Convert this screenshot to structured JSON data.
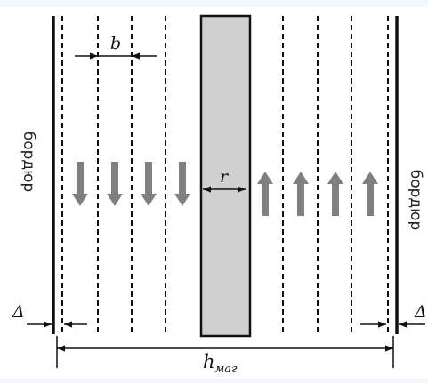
{
  "labels": {
    "b": "b",
    "r": "r",
    "delta_left": "Δ",
    "delta_right": "Δ",
    "h": "h",
    "h_sub": "маг",
    "border_left": "бордюр",
    "border_right": "бордюр"
  },
  "colors": {
    "line": "#111111",
    "arrow_fill": "#808080",
    "strip_fill": "#cfcfcf",
    "page_bg": "#ffffff"
  },
  "diagram": {
    "left_arrows_direction": "down",
    "right_arrows_direction": "up",
    "dashed_lines_per_side": 4
  }
}
